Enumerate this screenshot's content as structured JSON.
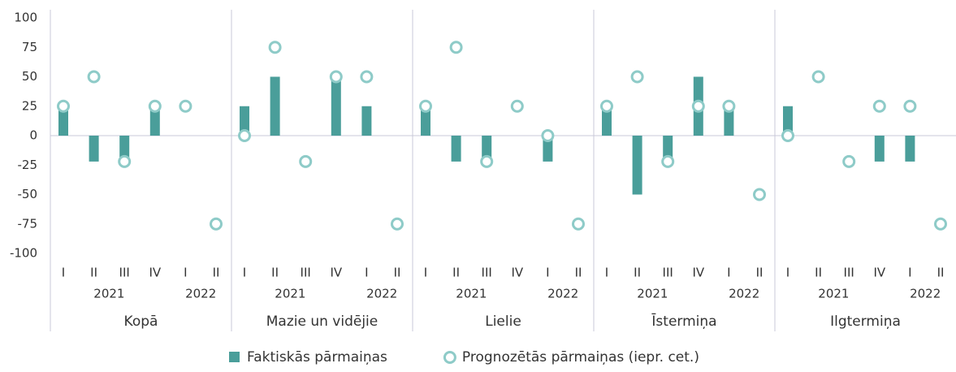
{
  "chart_data": {
    "type": "bar",
    "groups": [
      "Kopā",
      "Mazie un vidējie",
      "Lielie",
      "Īstermiņa",
      "Ilgtermiņa"
    ],
    "categories": [
      "I",
      "II",
      "III",
      "IV",
      "I",
      "II"
    ],
    "years": [
      "2021",
      "2022"
    ],
    "series": [
      {
        "name": "Faktiskās pārmaiņas",
        "color": "#4a9e9a",
        "kind": "bar",
        "values": [
          [
            25,
            -22,
            -22,
            25,
            0,
            0
          ],
          [
            25,
            50,
            0,
            50,
            25,
            0
          ],
          [
            25,
            -22,
            -22,
            0,
            -22,
            0
          ],
          [
            25,
            -50,
            -22,
            50,
            25,
            0
          ],
          [
            25,
            0,
            0,
            -22,
            -22,
            0
          ]
        ]
      },
      {
        "name": "Prognozētās pārmaiņas (iepr. cet.)",
        "color": "#8ecbc8",
        "kind": "circle",
        "values": [
          [
            25,
            50,
            -22,
            25,
            25,
            -75
          ],
          [
            0,
            75,
            -22,
            50,
            50,
            -75
          ],
          [
            25,
            75,
            -22,
            25,
            0,
            -75
          ],
          [
            25,
            50,
            -22,
            25,
            25,
            -50
          ],
          [
            0,
            50,
            -22,
            25,
            25,
            -75
          ]
        ]
      }
    ],
    "ylim": [
      -100,
      100
    ],
    "yticks": [
      -100,
      -75,
      -50,
      -25,
      0,
      25,
      50,
      75,
      100
    ]
  }
}
